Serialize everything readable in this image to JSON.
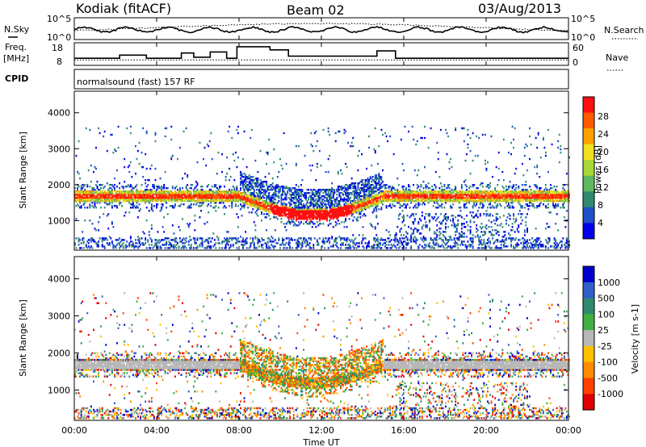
{
  "header": {
    "station": "Kodiak (fitACF)",
    "beam": "Beam 02",
    "date": "03/Aug/2013"
  },
  "aux": {
    "nsky_label": "N.Sky",
    "freq_label": "Freq.",
    "freq_unit": "[MHz]",
    "cpid_label": "CPID",
    "nsearch_label": "N.Search",
    "nave_label": "Nave",
    "cpid_text": "normalsound (fast) 157 RF",
    "noise_ticks_left": [
      "10^5",
      "10^0"
    ],
    "noise_ticks_right": [
      "10^5",
      "10^0"
    ],
    "freq_ticks": [
      "18",
      "8"
    ],
    "nave_ticks": [
      "60",
      "0"
    ]
  },
  "chart_data": [
    {
      "type": "heatmap",
      "name": "Power",
      "ylabel": "Slant Range [km]",
      "xlabel": "Time UT",
      "xlim": [
        0,
        24
      ],
      "ylim": [
        180,
        4600
      ],
      "yticks": [
        "1000",
        "2000",
        "3000",
        "4000"
      ],
      "colorbar": {
        "label": "Power [dB]",
        "ticks": [
          "4",
          "8",
          "12",
          "16",
          "20",
          "24",
          "28"
        ],
        "range": [
          0,
          30
        ],
        "colors": [
          "#0000e6",
          "#1e50c8",
          "#2f8a6f",
          "#5db85f",
          "#a8d838",
          "#f0e020",
          "#ffa000",
          "#ff5a00",
          "#ff1010"
        ]
      }
    },
    {
      "type": "heatmap",
      "name": "Velocity",
      "ylabel": "Slant Range [km]",
      "xlabel": "Time UT",
      "xlim": [
        0,
        24
      ],
      "ylim": [
        180,
        4600
      ],
      "yticks": [
        "1000",
        "2000",
        "3000",
        "4000"
      ],
      "colorbar": {
        "label": "Velocity [m s-1]",
        "ticks": [
          "1000",
          "500",
          "100",
          "25",
          "-25",
          "-100",
          "-500",
          "-1000"
        ],
        "colors": [
          "#0000cc",
          "#3060c8",
          "#2f8a6f",
          "#40b040",
          "#b8b8b8",
          "#ffc000",
          "#ff8a00",
          "#ff4000",
          "#e00000"
        ]
      }
    }
  ],
  "time_ticks": [
    "00:00",
    "04:00",
    "08:00",
    "12:00",
    "16:00",
    "20:00",
    "00:00"
  ],
  "xlabel": "Time UT"
}
